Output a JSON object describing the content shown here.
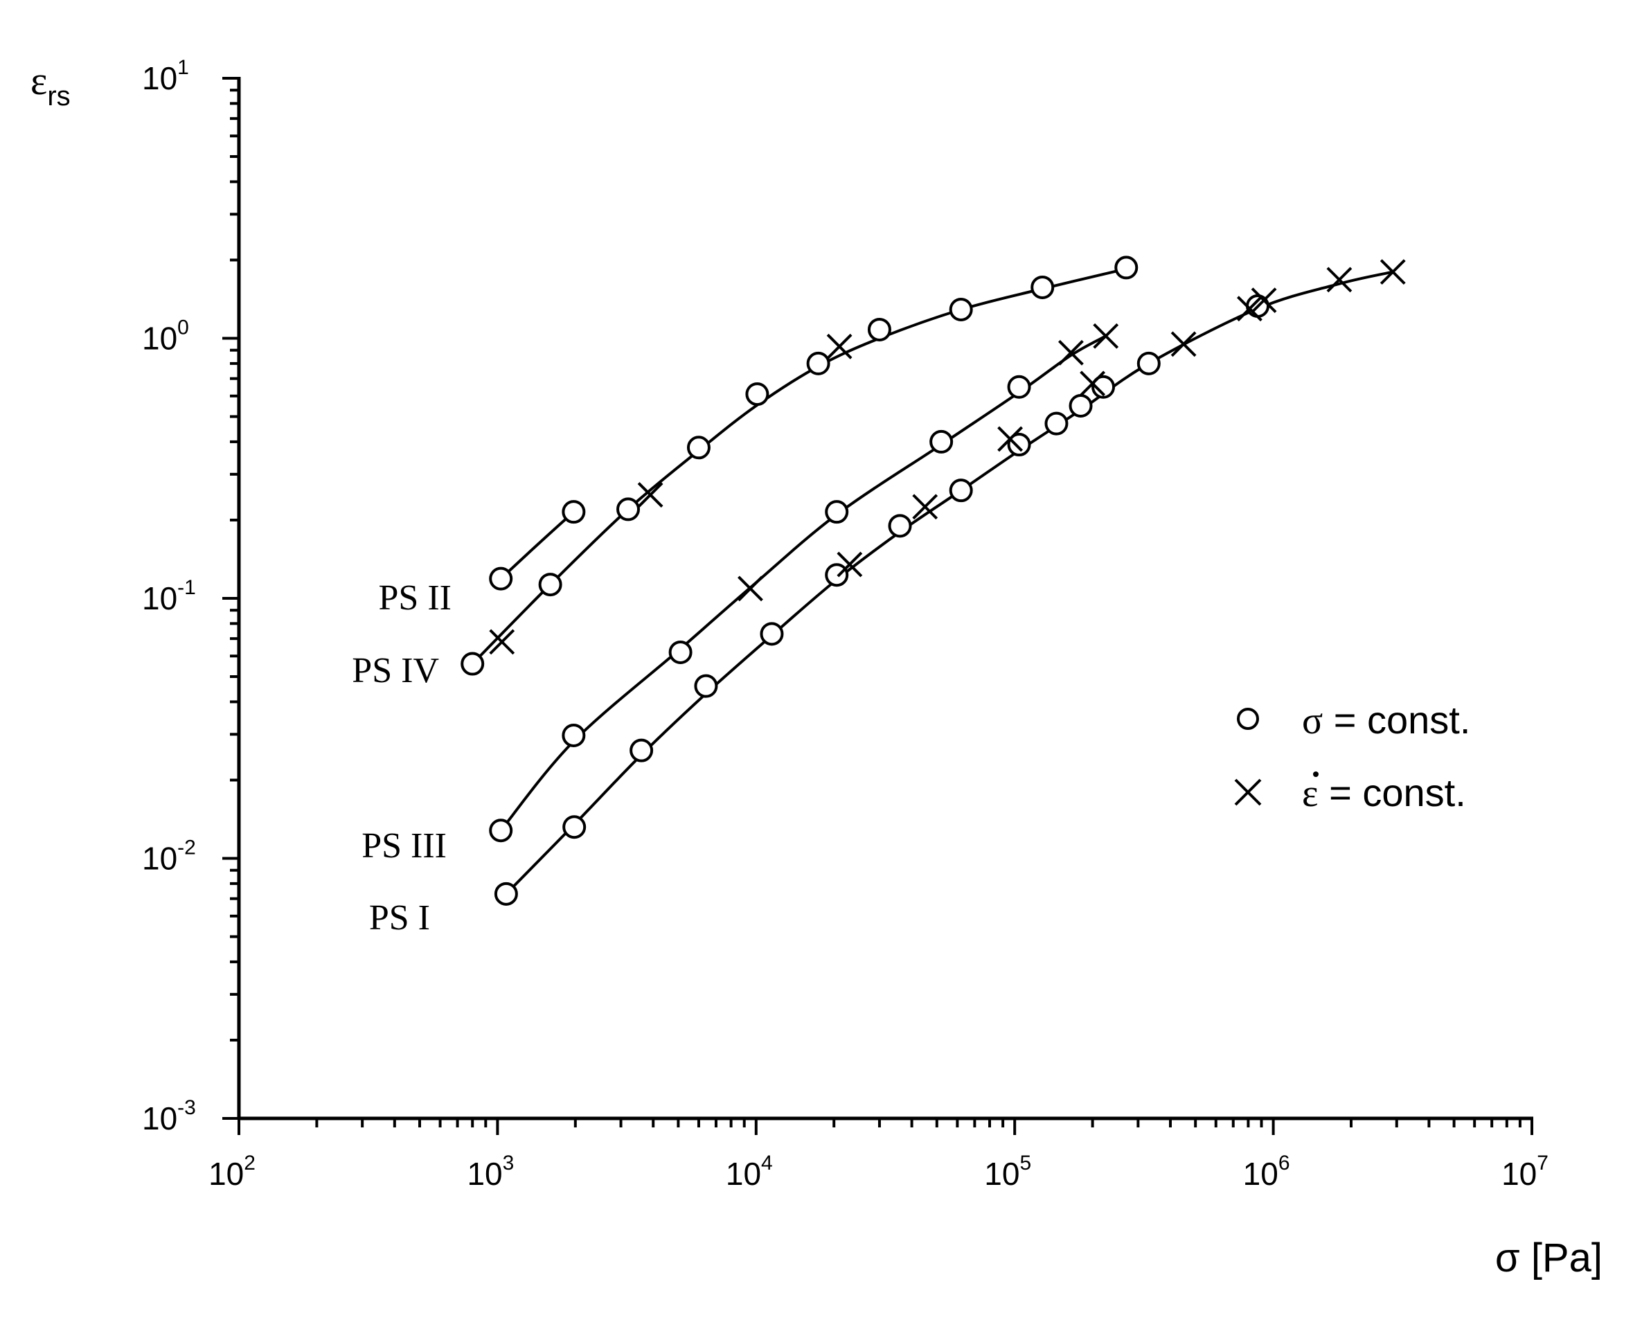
{
  "chart_data": {
    "type": "scatter",
    "x_scale": "log",
    "y_scale": "log",
    "xlim": [
      100,
      10000000
    ],
    "ylim": [
      0.001,
      10
    ],
    "xlabel": "σ [Pa]",
    "ylabel": "ε",
    "ylabel_sub": "rs",
    "x_ticks": [
      {
        "base": "10",
        "exp": "2",
        "value": 100
      },
      {
        "base": "10",
        "exp": "3",
        "value": 1000
      },
      {
        "base": "10",
        "exp": "4",
        "value": 10000
      },
      {
        "base": "10",
        "exp": "5",
        "value": 100000
      },
      {
        "base": "10",
        "exp": "6",
        "value": 1000000
      },
      {
        "base": "10",
        "exp": "7",
        "value": 10000000
      }
    ],
    "y_ticks": [
      {
        "base": "10",
        "exp": "-3",
        "value": 0.001
      },
      {
        "base": "10",
        "exp": "-2",
        "value": 0.01
      },
      {
        "base": "10",
        "exp": "-1",
        "value": 0.1
      },
      {
        "base": "10",
        "exp": "0",
        "value": 1
      },
      {
        "base": "10",
        "exp": "1",
        "value": 10
      }
    ],
    "grid": false,
    "legend_position": "right",
    "legend": [
      {
        "marker": "circle",
        "symbol": "σ",
        "text": "= const."
      },
      {
        "marker": "cross",
        "symbol": "ε",
        "text": "= const."
      }
    ],
    "series": [
      {
        "name": "PS II",
        "circles": [
          [
            1030,
            0.119
          ],
          [
            1970,
            0.215
          ]
        ],
        "crosses": [],
        "curve": [
          [
            1030,
            0.119
          ],
          [
            1400,
            0.158
          ],
          [
            1970,
            0.215
          ]
        ]
      },
      {
        "name": "PS IV",
        "circles": [
          [
            800,
            0.056
          ],
          [
            1600,
            0.113
          ],
          [
            3200,
            0.22
          ],
          [
            6000,
            0.38
          ],
          [
            10100,
            0.61
          ],
          [
            17400,
            0.8
          ],
          [
            30000,
            1.08
          ],
          [
            62000,
            1.29
          ],
          [
            128000,
            1.57
          ],
          [
            270000,
            1.87
          ]
        ],
        "crosses": [
          [
            1040,
            0.068
          ],
          [
            3900,
            0.25
          ],
          [
            21000,
            0.93
          ]
        ],
        "curve": [
          [
            800,
            0.056
          ],
          [
            1600,
            0.113
          ],
          [
            3200,
            0.22
          ],
          [
            6000,
            0.37
          ],
          [
            10000,
            0.55
          ],
          [
            17400,
            0.78
          ],
          [
            30000,
            1.0
          ],
          [
            62000,
            1.29
          ],
          [
            128000,
            1.55
          ],
          [
            270000,
            1.85
          ]
        ]
      },
      {
        "name": "PS III",
        "circles": [
          [
            1030,
            0.0128
          ],
          [
            1970,
            0.0297
          ],
          [
            5100,
            0.062
          ],
          [
            20500,
            0.215
          ],
          [
            52000,
            0.4
          ],
          [
            104000,
            0.65
          ]
        ],
        "crosses": [
          [
            9500,
            0.109
          ],
          [
            165000,
            0.88
          ],
          [
            225000,
            1.02
          ]
        ],
        "curve": [
          [
            1030,
            0.0128
          ],
          [
            1970,
            0.0282
          ],
          [
            5100,
            0.064
          ],
          [
            9500,
            0.11
          ],
          [
            20500,
            0.21
          ],
          [
            52000,
            0.39
          ],
          [
            104000,
            0.62
          ],
          [
            165000,
            0.86
          ],
          [
            225000,
            1.02
          ]
        ]
      },
      {
        "name": "PS I",
        "circles": [
          [
            1080,
            0.0073
          ],
          [
            1980,
            0.0132
          ],
          [
            3600,
            0.026
          ],
          [
            6400,
            0.046
          ],
          [
            11500,
            0.073
          ],
          [
            20500,
            0.123
          ],
          [
            36000,
            0.19
          ],
          [
            62000,
            0.26
          ],
          [
            104000,
            0.39
          ],
          [
            145000,
            0.47
          ],
          [
            180000,
            0.55
          ],
          [
            220000,
            0.65
          ],
          [
            330000,
            0.8
          ],
          [
            870000,
            1.33
          ]
        ],
        "crosses": [
          [
            23000,
            0.135
          ],
          [
            45000,
            0.225
          ],
          [
            96000,
            0.41
          ],
          [
            200000,
            0.67
          ],
          [
            450000,
            0.95
          ],
          [
            810000,
            1.3
          ],
          [
            920000,
            1.4
          ],
          [
            1800000,
            1.68
          ],
          [
            2900000,
            1.8
          ]
        ],
        "curve": [
          [
            1080,
            0.0073
          ],
          [
            1980,
            0.0135
          ],
          [
            3600,
            0.025
          ],
          [
            6400,
            0.043
          ],
          [
            11500,
            0.072
          ],
          [
            20500,
            0.118
          ],
          [
            36000,
            0.18
          ],
          [
            62000,
            0.26
          ],
          [
            104000,
            0.37
          ],
          [
            180000,
            0.53
          ],
          [
            330000,
            0.8
          ],
          [
            870000,
            1.3
          ],
          [
            1800000,
            1.62
          ],
          [
            2900000,
            1.8
          ]
        ]
      }
    ]
  }
}
